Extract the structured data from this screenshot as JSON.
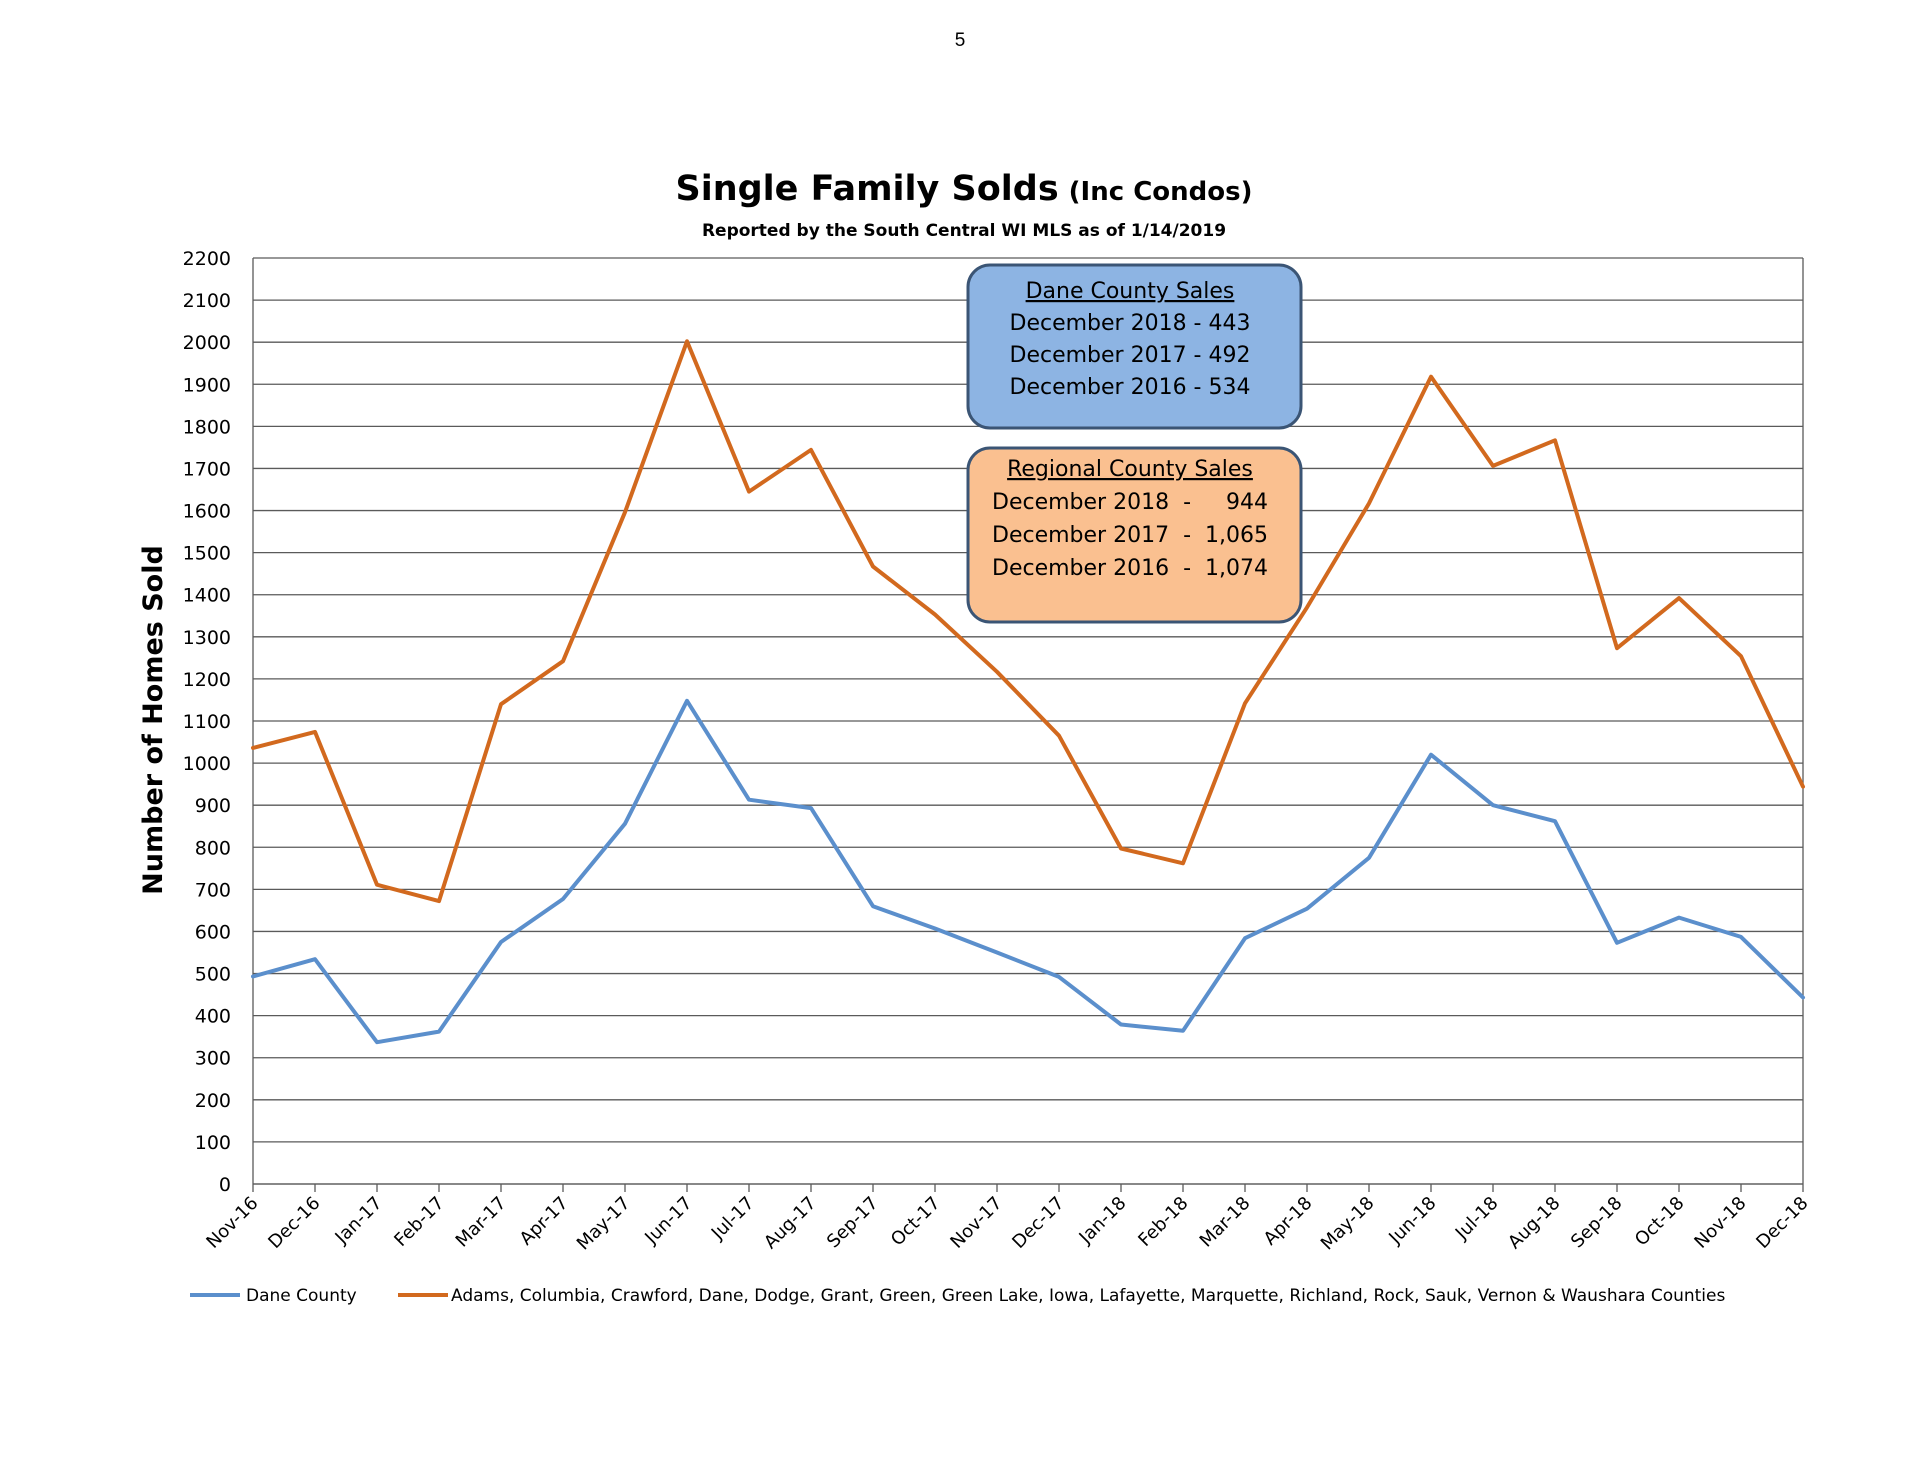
{
  "page_number": "5",
  "chart_data": {
    "type": "line",
    "title": "Single Family Solds",
    "title_suffix": "(Inc Condos)",
    "subtitle": "Reported by the South Central WI MLS as of 1/14/2019",
    "ylabel": "Number of Homes Sold",
    "xlabel": "",
    "ylim": [
      0,
      2200
    ],
    "ytick_step": 100,
    "grid": true,
    "legend_position": "bottom",
    "categories": [
      "Nov-16",
      "Dec-16",
      "Jan-17",
      "Feb-17",
      "Mar-17",
      "Apr-17",
      "May-17",
      "Jun-17",
      "Jul-17",
      "Aug-17",
      "Sep-17",
      "Oct-17",
      "Nov-17",
      "Dec-17",
      "Jan-18",
      "Feb-18",
      "Mar-18",
      "Apr-18",
      "May-18",
      "Jun-18",
      "Jul-18",
      "Aug-18",
      "Sep-18",
      "Oct-18",
      "Nov-18",
      "Dec-18"
    ],
    "series": [
      {
        "name": "Dane County",
        "color": "#5b8fcc",
        "values": [
          493,
          534,
          337,
          362,
          575,
          677,
          856,
          1148,
          913,
          893,
          660,
          607,
          550,
          492,
          379,
          364,
          584,
          654,
          775,
          1020,
          900,
          862,
          573,
          633,
          587,
          443
        ]
      },
      {
        "name": "Adams, Columbia, Crawford, Dane, Dodge, Grant, Green, Green Lake, Iowa, Lafayette, Marquette, Richland, Rock, Sauk, Vernon & Waushara Counties",
        "color": "#d2691e",
        "values": [
          1036,
          1074,
          711,
          672,
          1140,
          1242,
          1596,
          2002,
          1645,
          1744,
          1467,
          1353,
          1217,
          1065,
          797,
          762,
          1142,
          1370,
          1617,
          1918,
          1706,
          1767,
          1273,
          1392,
          1254,
          944
        ]
      }
    ],
    "annotations": [
      {
        "heading": "Dane County Sales",
        "lines": [
          "December 2018 - 443",
          "December 2017 - 492",
          "December 2016 - 534"
        ],
        "fill": "#8db4e3",
        "stroke": "#3b5575"
      },
      {
        "heading": "Regional County Sales",
        "lines": [
          "December 2018  -     944",
          "December 2017  -  1,065",
          "December 2016  -  1,074"
        ],
        "fill": "#fac090",
        "stroke": "#3b5575"
      }
    ]
  }
}
